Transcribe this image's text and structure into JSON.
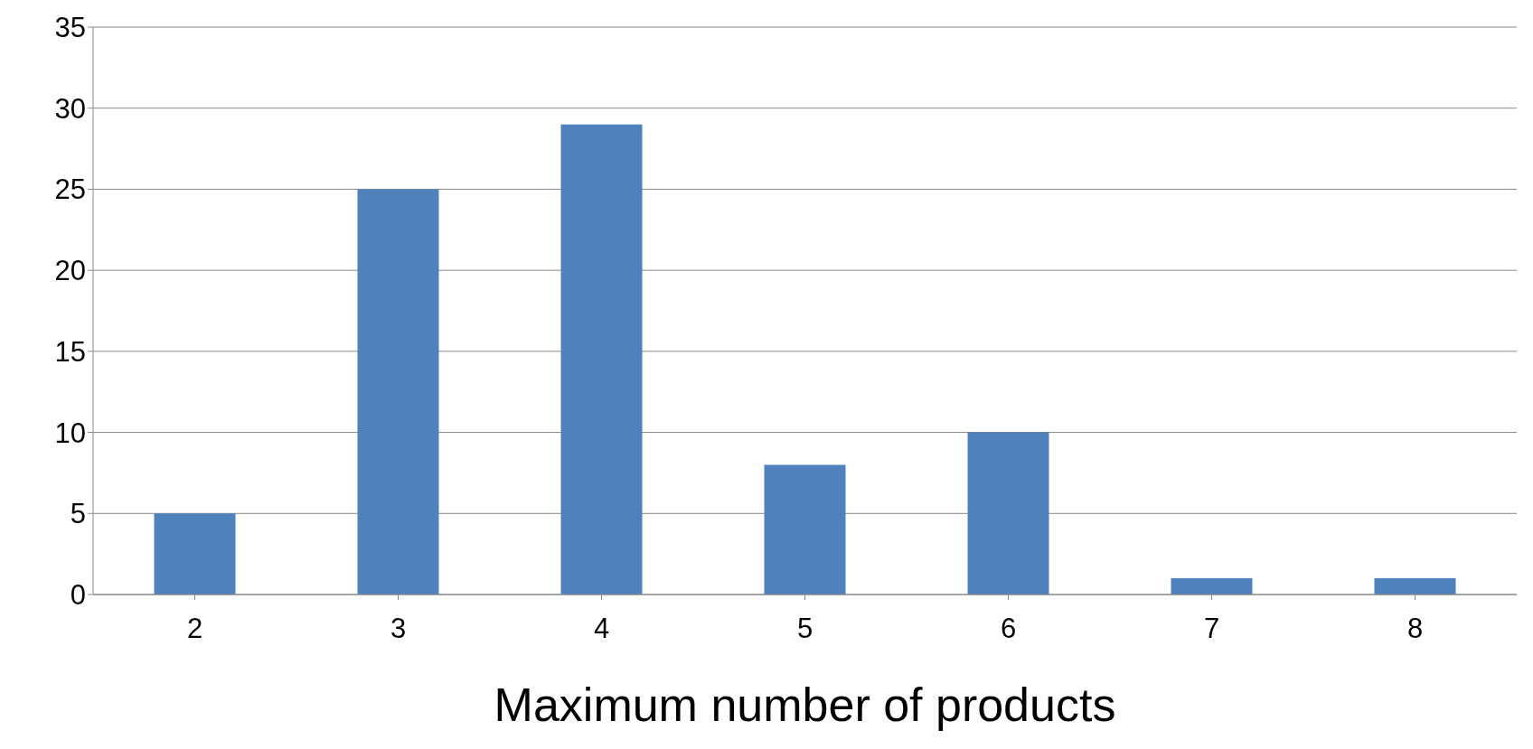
{
  "chart_data": {
    "type": "bar",
    "xlabel": "Maximum number of products",
    "categories": [
      "2",
      "3",
      "4",
      "5",
      "6",
      "7",
      "8"
    ],
    "values": [
      5,
      25,
      29,
      8,
      10,
      1,
      1
    ],
    "color": "#4f81bd",
    "ylim": [
      0,
      35
    ],
    "yticks": [
      0,
      5,
      10,
      15,
      20,
      25,
      30,
      35
    ],
    "grid": "y"
  }
}
